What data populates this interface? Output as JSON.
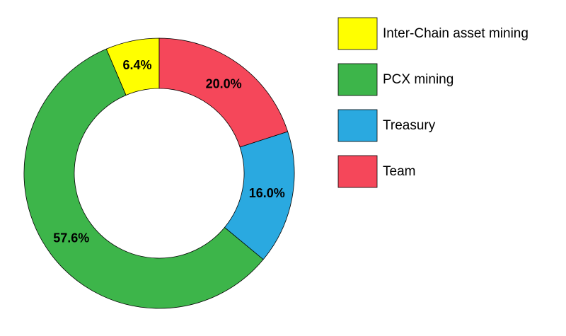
{
  "chart_data": {
    "type": "donut",
    "categories": [
      "Inter-Chain asset mining",
      "PCX mining",
      "Treasury",
      "Team"
    ],
    "values": [
      6.4,
      57.6,
      16.0,
      20.0
    ],
    "value_labels": [
      "6.4%",
      "57.6%",
      "16.0%",
      "20.0%"
    ],
    "colors": [
      "#ffff00",
      "#3db54a",
      "#2aa9e0",
      "#f5475a"
    ],
    "legend": "right"
  }
}
